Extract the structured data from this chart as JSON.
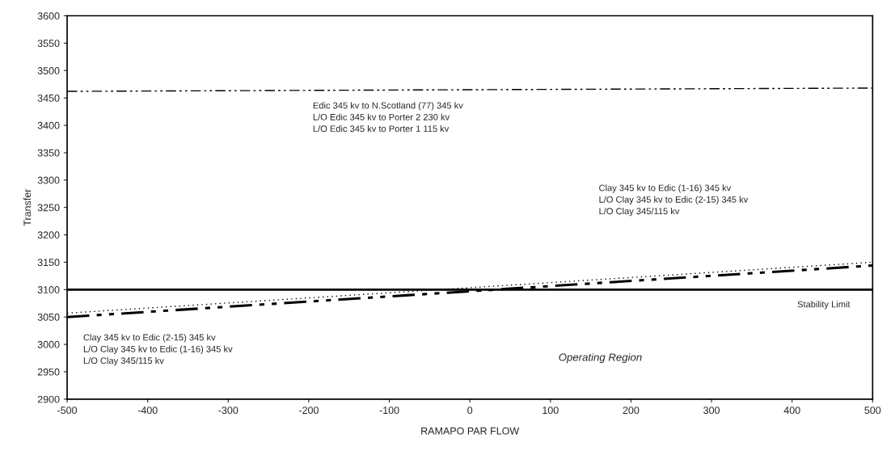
{
  "chart_data": {
    "type": "line",
    "xlabel": "RAMAPO PAR FLOW",
    "ylabel": "Transfer",
    "x": [
      -500,
      500
    ],
    "series": [
      {
        "color": "#000000",
        "values": [
          3462,
          3468
        ],
        "line_style": "dashed"
      },
      {
        "color": "#000000",
        "values": [
          3057,
          3150
        ],
        "line_style": "dotted"
      },
      {
        "color": "#000000",
        "values": [
          3050,
          3144
        ],
        "line_style": "dashed"
      }
    ],
    "ref_lines": [
      {
        "axis": "y",
        "value": 3100,
        "label": "Stability Limit",
        "color": "#000000",
        "line_style": "solid"
      }
    ],
    "annotations": [
      "Edic 345 kv to N.Scotland (77) 345 kv\nL/O Edic 345 kv to Porter 2 230 kv\nL/O Edic 345 kv to Porter 1 115 kv",
      "Clay 345 kv to Edic (1-16) 345 kv\nL/O Clay 345 kv to Edic (2-15) 345 kv\nL/O Clay 345/115 kv",
      "Clay 345 kv to Edic (2-15) 345 kv\nL/O Clay 345 kv to Edic (1-16) 345 kv\nL/O Clay 345/115 kv",
      "Operating Region"
    ],
    "xlim": [
      -500,
      500
    ],
    "xticks": [
      -500,
      -400,
      -300,
      -200,
      -100,
      0,
      100,
      200,
      300,
      400,
      500
    ],
    "ylim": [
      2900,
      3600
    ],
    "yticks": [
      2900,
      2950,
      3000,
      3050,
      3100,
      3150,
      3200,
      3250,
      3300,
      3350,
      3400,
      3450,
      3500,
      3550,
      3600
    ],
    "grid": false,
    "legend": false,
    "marker": "none"
  }
}
